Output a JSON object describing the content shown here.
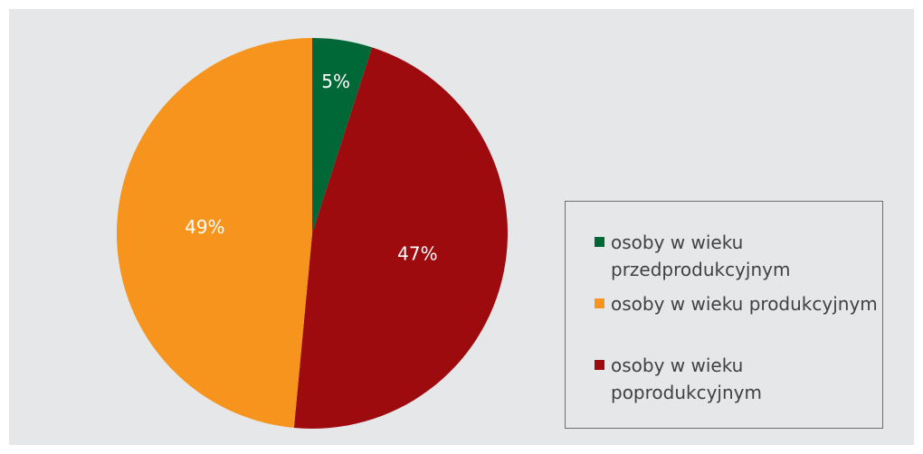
{
  "chart_data": {
    "type": "pie",
    "slices": [
      {
        "label": "osoby w wieku przedprodukcyjnym",
        "value": 5,
        "display": "5%",
        "color": "#006837"
      },
      {
        "label": "osoby w wieku poprodukcyjnym",
        "value": 47,
        "display": "47%",
        "color": "#9e0b0f"
      },
      {
        "label": "osoby w wieku produkcyjnym",
        "value": 49,
        "display": "49%",
        "color": "#f7941d"
      }
    ],
    "legend": {
      "placement": "right",
      "entries": [
        {
          "label": "osoby w wieku przedprodukcyjnym",
          "color": "#006837"
        },
        {
          "label": "osoby w wieku produkcyjnym",
          "color": "#f7941d"
        },
        {
          "label": "osoby w wieku poprodukcyjnym",
          "color": "#9e0b0f"
        }
      ]
    },
    "background": "#e6e7e8",
    "label_color": "#ffffff"
  }
}
